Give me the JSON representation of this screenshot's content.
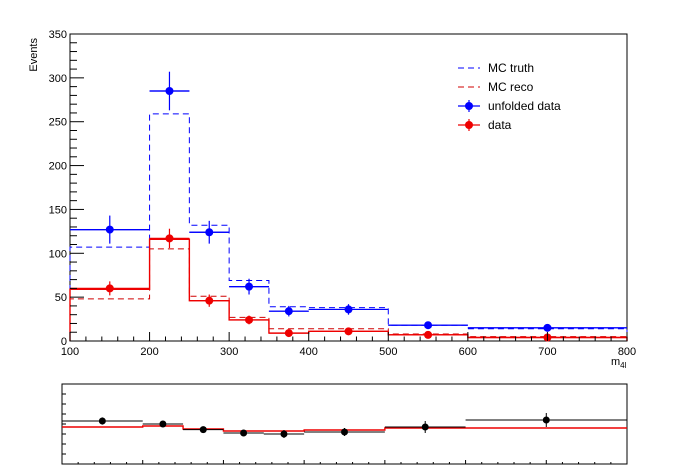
{
  "chart_data": [
    {
      "type": "histogram",
      "xlabel": "m",
      "xlabel_sub": "4l",
      "ylabel": "Events",
      "xlim": [
        100,
        800
      ],
      "ylim": [
        0,
        350
      ],
      "x_ticks": [
        100,
        200,
        300,
        400,
        500,
        600,
        700,
        800
      ],
      "y_ticks": [
        0,
        50,
        100,
        150,
        200,
        250,
        300,
        350
      ],
      "bin_edges": [
        100,
        200,
        250,
        300,
        350,
        400,
        500,
        600,
        800
      ],
      "legend_position": "top-right",
      "series": [
        {
          "name": "MC truth",
          "style": "dashed-line",
          "color": "#0000ff",
          "values": [
            107,
            259,
            132,
            69,
            39,
            38,
            18,
            14
          ]
        },
        {
          "name": "MC reco",
          "style": "dashed-line",
          "color": "#d00000",
          "values": [
            48,
            105,
            51,
            27,
            14,
            14,
            8,
            5
          ]
        },
        {
          "name": "unfolded data",
          "style": "points",
          "color": "#0000ff",
          "x": [
            150,
            225,
            275,
            325,
            375,
            450,
            550,
            700
          ],
          "values": [
            127,
            285,
            124,
            62,
            34,
            36,
            18,
            15
          ],
          "errors": [
            16,
            22,
            13,
            9,
            6,
            6,
            4,
            4
          ]
        },
        {
          "name": "data",
          "style": "points",
          "color": "#ee0000",
          "x": [
            150,
            225,
            275,
            325,
            375,
            450,
            550,
            700
          ],
          "values": [
            60,
            117,
            46,
            24,
            9,
            11,
            7,
            4
          ],
          "errors": [
            8,
            11,
            7,
            5,
            3,
            3,
            3,
            2
          ]
        }
      ],
      "fit_color": "#ee0000",
      "fit_values": [
        59,
        116,
        46,
        24,
        9,
        11,
        7,
        4
      ]
    },
    {
      "type": "ratio",
      "xlim": [
        100,
        800
      ],
      "ylim": [
        0,
        4
      ],
      "bin_edges": [
        100,
        200,
        250,
        300,
        350,
        400,
        500,
        600,
        800
      ],
      "x": [
        150,
        225,
        275,
        325,
        375,
        450,
        550,
        700
      ],
      "values": [
        2.15,
        2.0,
        1.72,
        1.55,
        1.5,
        1.6,
        1.85,
        2.2
      ],
      "errors": [
        0.18,
        0.15,
        0.12,
        0.15,
        0.2,
        0.2,
        0.3,
        0.35
      ],
      "reference_values": [
        1.85,
        1.9,
        1.75,
        1.65,
        1.65,
        1.7,
        1.8,
        1.8
      ],
      "line_color": "#ee0000",
      "points_color": "#000000"
    }
  ]
}
